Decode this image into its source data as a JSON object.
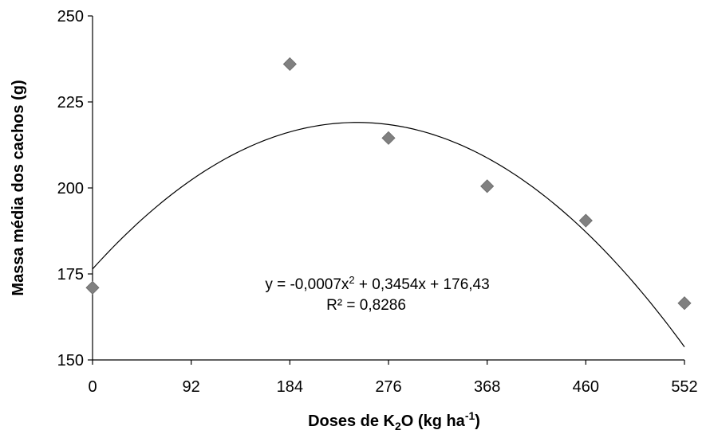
{
  "chart_data": {
    "type": "scatter",
    "xlabel_parts": {
      "prefix": "Doses de K",
      "sub": "2",
      "mid": "O (kg ha",
      "sup": "-1",
      "suffix": ")"
    },
    "ylabel": "Massa média dos cachos (g)",
    "x_ticks": [
      "0",
      "92",
      "184",
      "276",
      "368",
      "460",
      "552"
    ],
    "y_ticks": [
      "150",
      "175",
      "200",
      "225",
      "250"
    ],
    "xlim": [
      0,
      552
    ],
    "ylim": [
      150,
      250
    ],
    "grid": false,
    "points": [
      {
        "x": 0,
        "y": 171
      },
      {
        "x": 184,
        "y": 236
      },
      {
        "x": 276,
        "y": 214.5
      },
      {
        "x": 368,
        "y": 200.5
      },
      {
        "x": 460,
        "y": 190.5
      },
      {
        "x": 552,
        "y": 166.5
      }
    ],
    "marker_color": "#808080",
    "trendline": {
      "type": "polynomial",
      "degree": 2,
      "a": -0.0007,
      "b": 0.3454,
      "c": 176.43,
      "color": "#000000"
    },
    "equation_parts": {
      "lhs": "y = -0,0007x",
      "sup": "2",
      "rhs": " + 0,3454x + 176,43"
    },
    "r2_label": "R² = 0,8286"
  }
}
